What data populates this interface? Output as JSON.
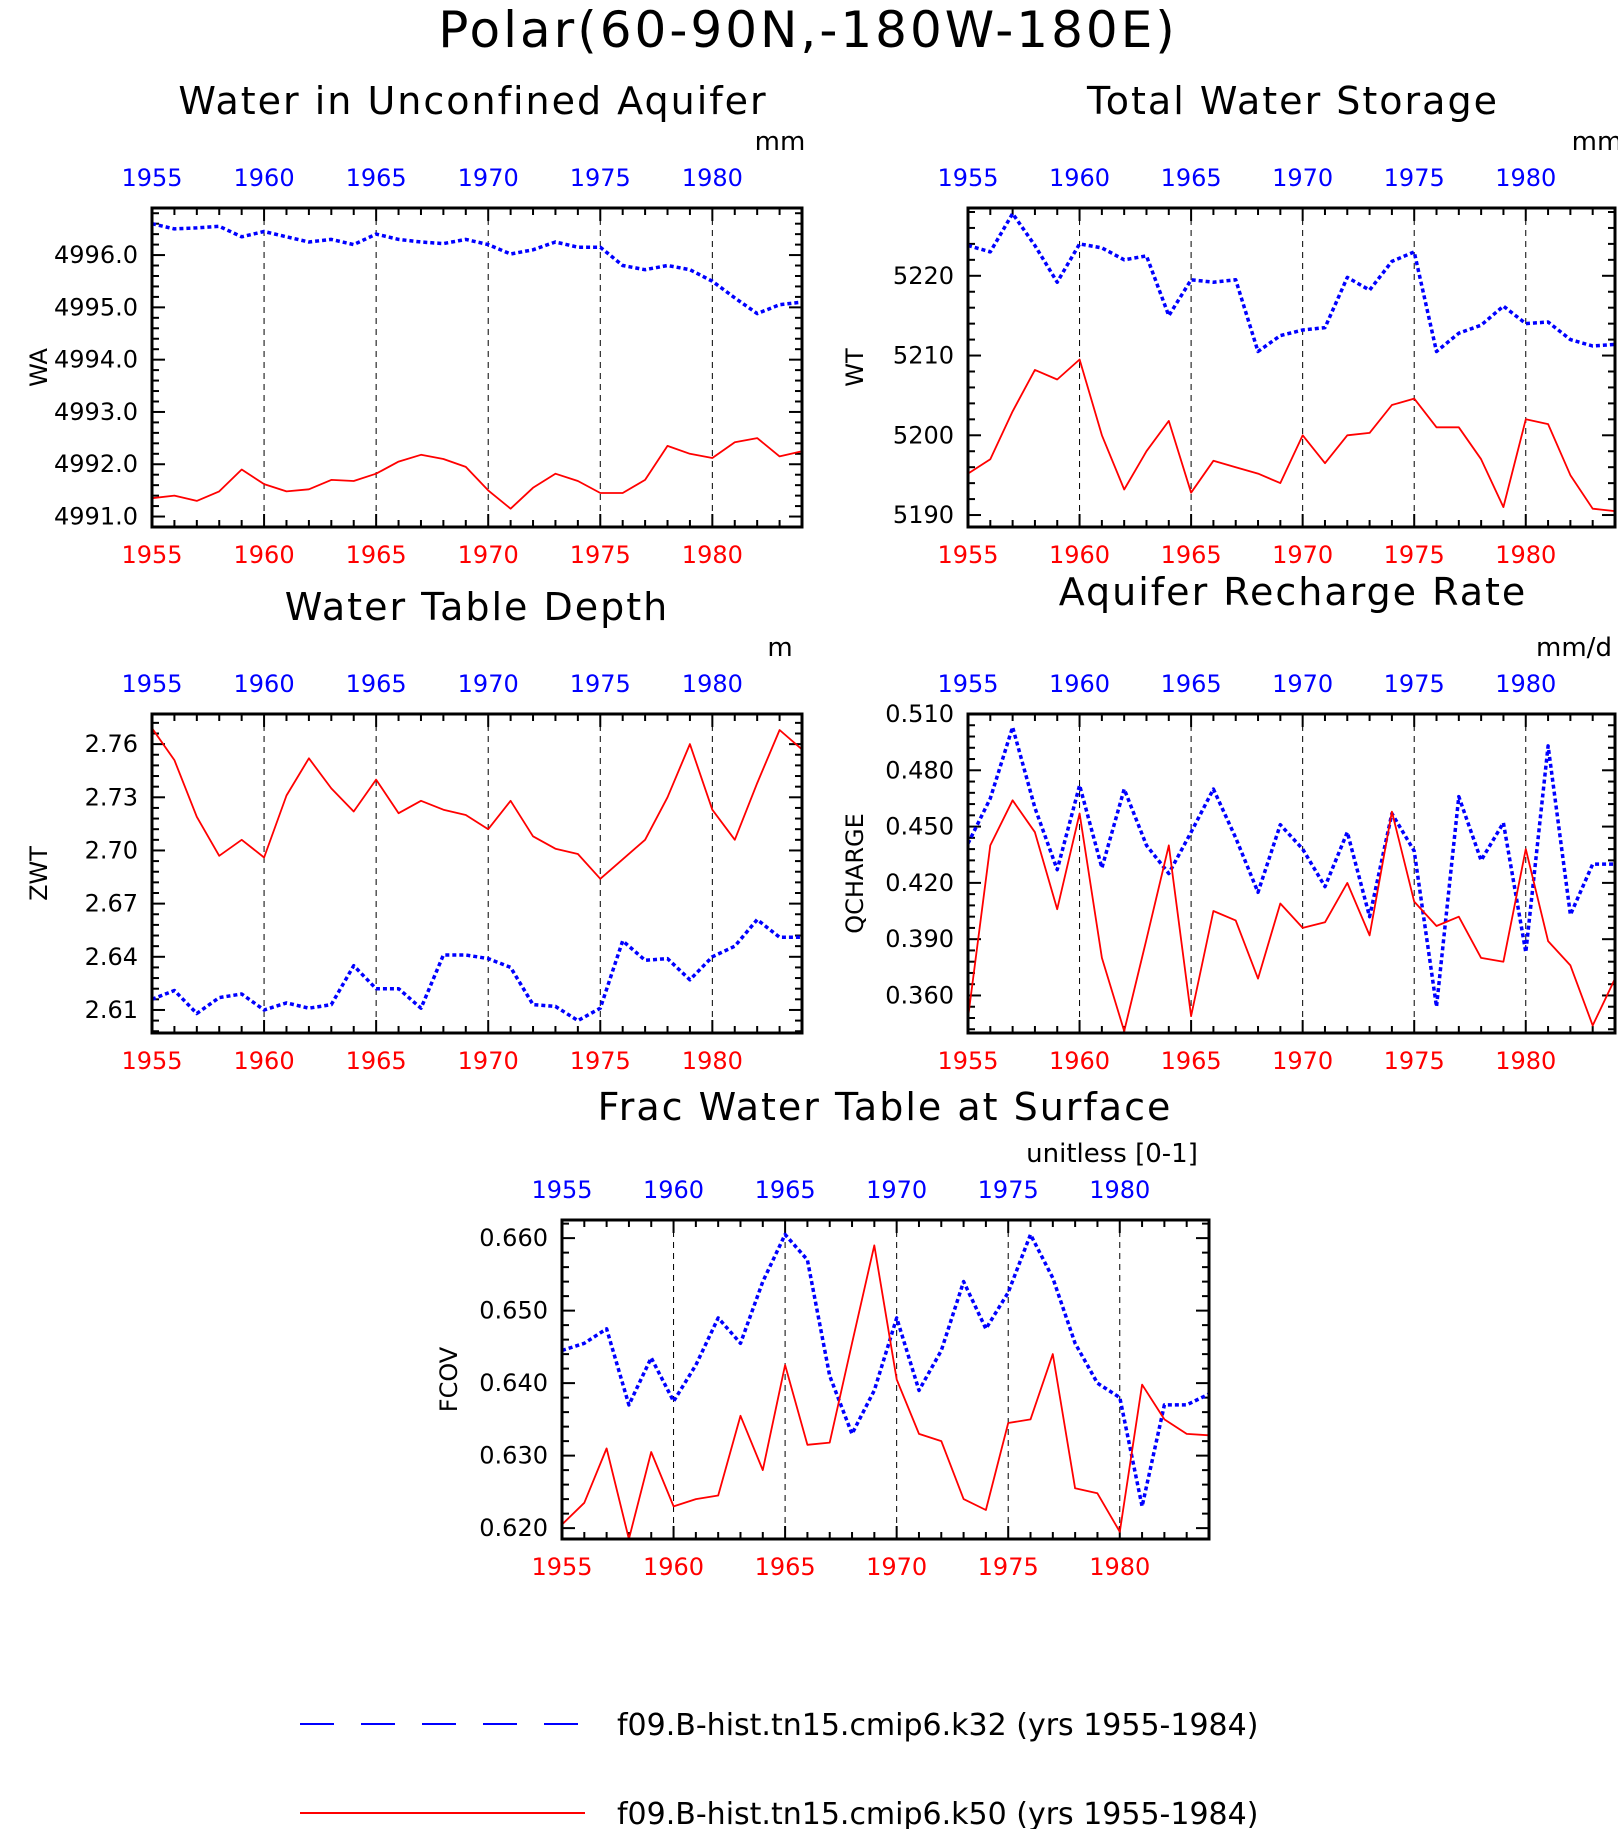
{
  "page": {
    "title": "Polar(60-90N,-180W-180E)"
  },
  "colors": {
    "blue": "#0000ff",
    "red": "#ff0000",
    "axis": "#000000",
    "grid": "#000000"
  },
  "legend": {
    "entries": [
      {
        "label": "f09.B-hist.tn15.cmip6.k32 (yrs 1955-1984)",
        "color": "#0000ff",
        "style": "dashed"
      },
      {
        "label": "f09.B-hist.tn15.cmip6.k50 (yrs 1955-1984)",
        "color": "#ff0000",
        "style": "solid"
      }
    ]
  },
  "chart_data": [
    {
      "type": "line",
      "title": "Water in Unconfined Aquifer",
      "ylabel": "WA",
      "units": "mm",
      "xlim": [
        1955,
        1984
      ],
      "ylim": [
        4990.8,
        4996.9
      ],
      "yticks": [
        4991.0,
        4992.0,
        4993.0,
        4994.0,
        4995.0,
        4996.0
      ],
      "ytick_labels": [
        "4991.0",
        "4992.0",
        "4993.0",
        "4994.0",
        "4995.0",
        "4996.0"
      ],
      "xticks": [
        1955,
        1960,
        1965,
        1970,
        1975,
        1980
      ],
      "xtick_labels": [
        "1955",
        "1960",
        "1965",
        "1970",
        "1975",
        "1980"
      ],
      "x": [
        1955,
        1956,
        1957,
        1958,
        1959,
        1960,
        1961,
        1962,
        1963,
        1964,
        1965,
        1966,
        1967,
        1968,
        1969,
        1970,
        1971,
        1972,
        1973,
        1974,
        1975,
        1976,
        1977,
        1978,
        1979,
        1980,
        1981,
        1982,
        1983,
        1984
      ],
      "series": [
        {
          "values": [
            4996.6,
            4996.5,
            4996.52,
            4996.55,
            4996.35,
            4996.45,
            4996.35,
            4996.25,
            4996.3,
            4996.2,
            4996.4,
            4996.3,
            4996.25,
            4996.22,
            4996.3,
            4996.2,
            4996.02,
            4996.1,
            4996.25,
            4996.15,
            4996.15,
            4995.8,
            4995.72,
            4995.8,
            4995.72,
            4995.5,
            4995.18,
            4994.88,
            4995.05,
            4995.1
          ],
          "color": "#0000ff",
          "style": "dashed"
        },
        {
          "values": [
            4991.35,
            4991.4,
            4991.3,
            4991.48,
            4991.9,
            4991.62,
            4991.48,
            4991.52,
            4991.7,
            4991.68,
            4991.82,
            4992.05,
            4992.18,
            4992.1,
            4991.95,
            4991.5,
            4991.15,
            4991.55,
            4991.82,
            4991.68,
            4991.45,
            4991.45,
            4991.7,
            4992.35,
            4992.2,
            4992.12,
            4992.42,
            4992.5,
            4992.15,
            4992.25
          ],
          "color": "#ff0000",
          "style": "solid"
        }
      ]
    },
    {
      "type": "line",
      "title": "Total Water Storage",
      "ylabel": "WT",
      "units": "mm",
      "xlim": [
        1955,
        1984
      ],
      "ylim": [
        5188.5,
        5228.5
      ],
      "yticks": [
        5190,
        5200,
        5210,
        5220
      ],
      "ytick_labels": [
        "5190",
        "5200",
        "5210",
        "5220"
      ],
      "xticks": [
        1955,
        1960,
        1965,
        1970,
        1975,
        1980
      ],
      "xtick_labels": [
        "1955",
        "1960",
        "1965",
        "1970",
        "1975",
        "1980"
      ],
      "x": [
        1955,
        1956,
        1957,
        1958,
        1959,
        1960,
        1961,
        1962,
        1963,
        1964,
        1965,
        1966,
        1967,
        1968,
        1969,
        1970,
        1971,
        1972,
        1973,
        1974,
        1975,
        1976,
        1977,
        1978,
        1979,
        1980,
        1981,
        1982,
        1983,
        1984
      ],
      "series": [
        {
          "values": [
            5223.8,
            5223.0,
            5227.8,
            5223.8,
            5219.2,
            5224.0,
            5223.5,
            5222.0,
            5222.5,
            5215.0,
            5219.5,
            5219.2,
            5219.5,
            5210.5,
            5212.5,
            5213.2,
            5213.5,
            5219.8,
            5218.2,
            5221.8,
            5223.0,
            5210.5,
            5212.8,
            5213.8,
            5216.2,
            5214.0,
            5214.2,
            5212.0,
            5211.2,
            5211.4
          ],
          "color": "#0000ff",
          "style": "dashed"
        },
        {
          "values": [
            5195.2,
            5197.0,
            5203.0,
            5208.2,
            5207.0,
            5209.5,
            5200.0,
            5193.2,
            5198.0,
            5201.8,
            5192.8,
            5196.8,
            5196.0,
            5195.2,
            5194.0,
            5200.0,
            5196.5,
            5200.0,
            5200.3,
            5203.8,
            5204.6,
            5201.0,
            5201.0,
            5197.0,
            5191.0,
            5202.0,
            5201.4,
            5195.0,
            5190.8,
            5190.5
          ],
          "color": "#ff0000",
          "style": "solid"
        }
      ]
    },
    {
      "type": "line",
      "title": "Water Table Depth",
      "ylabel": "ZWT",
      "units": "m",
      "xlim": [
        1955,
        1984
      ],
      "ylim": [
        2.597,
        2.777
      ],
      "yticks": [
        2.61,
        2.64,
        2.67,
        2.7,
        2.73,
        2.76
      ],
      "ytick_labels": [
        "2.61",
        "2.64",
        "2.67",
        "2.70",
        "2.73",
        "2.76"
      ],
      "xticks": [
        1955,
        1960,
        1965,
        1970,
        1975,
        1980
      ],
      "xtick_labels": [
        "1955",
        "1960",
        "1965",
        "1970",
        "1975",
        "1980"
      ],
      "x": [
        1955,
        1956,
        1957,
        1958,
        1959,
        1960,
        1961,
        1962,
        1963,
        1964,
        1965,
        1966,
        1967,
        1968,
        1969,
        1970,
        1971,
        1972,
        1973,
        1974,
        1975,
        1976,
        1977,
        1978,
        1979,
        1980,
        1981,
        1982,
        1983,
        1984
      ],
      "series": [
        {
          "values": [
            2.616,
            2.621,
            2.608,
            2.617,
            2.619,
            2.61,
            2.614,
            2.611,
            2.613,
            2.635,
            2.622,
            2.622,
            2.611,
            2.641,
            2.641,
            2.639,
            2.634,
            2.613,
            2.612,
            2.604,
            2.611,
            2.649,
            2.638,
            2.639,
            2.627,
            2.64,
            2.646,
            2.661,
            2.651,
            2.651
          ],
          "color": "#0000ff",
          "style": "dashed"
        },
        {
          "values": [
            2.769,
            2.751,
            2.719,
            2.697,
            2.706,
            2.696,
            2.731,
            2.752,
            2.735,
            2.722,
            2.74,
            2.721,
            2.728,
            2.723,
            2.72,
            2.712,
            2.728,
            2.708,
            2.701,
            2.698,
            2.684,
            2.695,
            2.706,
            2.73,
            2.76,
            2.723,
            2.706,
            2.738,
            2.768,
            2.757
          ],
          "color": "#ff0000",
          "style": "solid"
        }
      ]
    },
    {
      "type": "line",
      "title": "Aquifer Recharge Rate",
      "ylabel": "QCHARGE",
      "units": "mm/d",
      "xlim": [
        1955,
        1984
      ],
      "ylim": [
        0.34,
        0.51
      ],
      "yticks": [
        0.36,
        0.39,
        0.42,
        0.45,
        0.48,
        0.51
      ],
      "ytick_labels": [
        "0.360",
        "0.390",
        "0.420",
        "0.450",
        "0.480",
        "0.510"
      ],
      "xticks": [
        1955,
        1960,
        1965,
        1970,
        1975,
        1980
      ],
      "xtick_labels": [
        "1955",
        "1960",
        "1965",
        "1970",
        "1975",
        "1980"
      ],
      "x": [
        1955,
        1956,
        1957,
        1958,
        1959,
        1960,
        1961,
        1962,
        1963,
        1964,
        1965,
        1966,
        1967,
        1968,
        1969,
        1970,
        1971,
        1972,
        1973,
        1974,
        1975,
        1976,
        1977,
        1978,
        1979,
        1980,
        1981,
        1982,
        1983,
        1984
      ],
      "series": [
        {
          "values": [
            0.441,
            0.465,
            0.503,
            0.46,
            0.427,
            0.472,
            0.428,
            0.47,
            0.44,
            0.425,
            0.447,
            0.47,
            0.444,
            0.415,
            0.451,
            0.438,
            0.418,
            0.447,
            0.402,
            0.457,
            0.437,
            0.354,
            0.466,
            0.432,
            0.452,
            0.383,
            0.493,
            0.403,
            0.43,
            0.43
          ],
          "color": "#0000ff",
          "style": "dashed"
        },
        {
          "values": [
            0.348,
            0.44,
            0.464,
            0.447,
            0.406,
            0.457,
            0.38,
            0.341,
            0.39,
            0.44,
            0.349,
            0.405,
            0.4,
            0.369,
            0.409,
            0.396,
            0.399,
            0.42,
            0.392,
            0.458,
            0.41,
            0.397,
            0.402,
            0.38,
            0.378,
            0.438,
            0.389,
            0.376,
            0.344,
            0.369
          ],
          "color": "#ff0000",
          "style": "solid"
        }
      ]
    },
    {
      "type": "line",
      "title": "Frac Water Table at Surface",
      "ylabel": "FCOV",
      "units": "unitless [0-1]",
      "xlim": [
        1955,
        1984
      ],
      "ylim": [
        0.6185,
        0.6625
      ],
      "yticks": [
        0.62,
        0.63,
        0.64,
        0.65,
        0.66
      ],
      "ytick_labels": [
        "0.620",
        "0.630",
        "0.640",
        "0.650",
        "0.660"
      ],
      "xticks": [
        1955,
        1960,
        1965,
        1970,
        1975,
        1980
      ],
      "xtick_labels": [
        "1955",
        "1960",
        "1965",
        "1970",
        "1975",
        "1980"
      ],
      "x": [
        1955,
        1956,
        1957,
        1958,
        1959,
        1960,
        1961,
        1962,
        1963,
        1964,
        1965,
        1966,
        1967,
        1968,
        1969,
        1970,
        1971,
        1972,
        1973,
        1974,
        1975,
        1976,
        1977,
        1978,
        1979,
        1980,
        1981,
        1982,
        1983,
        1984
      ],
      "series": [
        {
          "values": [
            0.6445,
            0.6455,
            0.6475,
            0.637,
            0.6435,
            0.6375,
            0.6425,
            0.649,
            0.6455,
            0.654,
            0.6605,
            0.657,
            0.641,
            0.633,
            0.639,
            0.649,
            0.639,
            0.6445,
            0.654,
            0.6475,
            0.6525,
            0.6605,
            0.6545,
            0.6455,
            0.64,
            0.638,
            0.623,
            0.637,
            0.637,
            0.6385
          ],
          "color": "#0000ff",
          "style": "dashed"
        },
        {
          "values": [
            0.6205,
            0.6235,
            0.631,
            0.6185,
            0.6305,
            0.623,
            0.624,
            0.6245,
            0.6355,
            0.628,
            0.6425,
            0.6315,
            0.6318,
            0.6455,
            0.659,
            0.6405,
            0.633,
            0.632,
            0.624,
            0.6225,
            0.6345,
            0.635,
            0.644,
            0.6255,
            0.6248,
            0.6195,
            0.6398,
            0.635,
            0.633,
            0.6328
          ],
          "color": "#ff0000",
          "style": "solid"
        }
      ]
    }
  ]
}
